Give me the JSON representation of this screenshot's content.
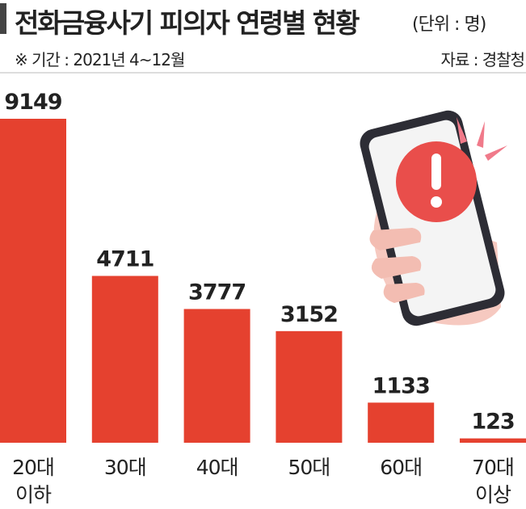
{
  "chart_data": {
    "type": "bar",
    "title": "전화금융사기 피의자 연령별 현황",
    "unit": "(단위 : 명)",
    "subtitle": "※ 기간 : 2021년 4~12월",
    "source": "자료 : 경찰청",
    "categories": [
      "20대\n이하",
      "30대",
      "40대",
      "50대",
      "60대",
      "70대\n이상"
    ],
    "values": [
      9149,
      4711,
      3777,
      3152,
      1133,
      123
    ],
    "color": "#e5412f"
  }
}
